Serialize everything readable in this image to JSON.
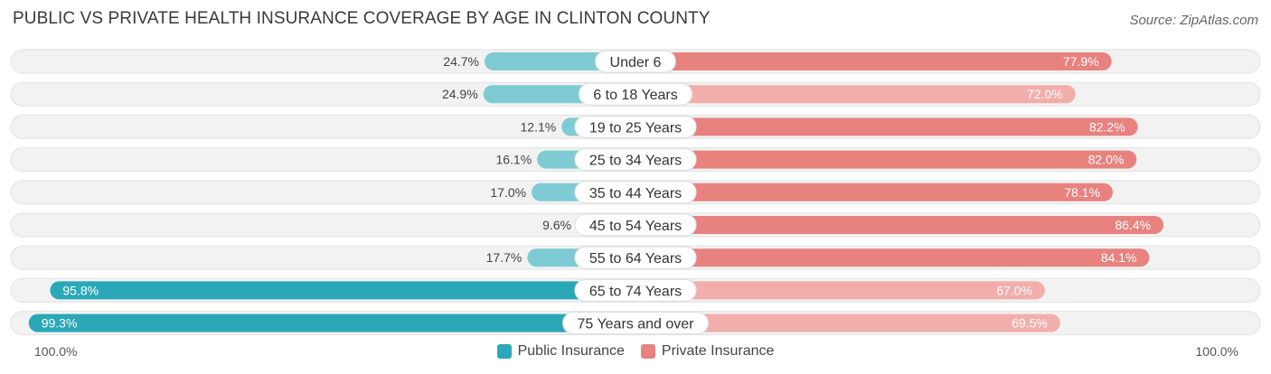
{
  "title": "PUBLIC VS PRIVATE HEALTH INSURANCE COVERAGE BY AGE IN CLINTON COUNTY",
  "source": "Source: ZipAtlas.com",
  "colors": {
    "public_dark": "#2aa8b8",
    "public_light": "#7ecbd3",
    "private_dark": "#e8827f",
    "private_light": "#f2aeab",
    "row_bg": "#f0f0f0"
  },
  "chart_data": {
    "type": "bar",
    "orientation": "horizontal-diverging",
    "title": "PUBLIC VS PRIVATE HEALTH INSURANCE COVERAGE BY AGE IN CLINTON COUNTY",
    "categories": [
      "Under 6",
      "6 to 18 Years",
      "19 to 25 Years",
      "25 to 34 Years",
      "35 to 44 Years",
      "45 to 54 Years",
      "55 to 64 Years",
      "65 to 74 Years",
      "75 Years and over"
    ],
    "series": [
      {
        "name": "Public Insurance",
        "values": [
          24.7,
          24.9,
          12.1,
          16.1,
          17.0,
          9.6,
          17.7,
          95.8,
          99.3
        ],
        "labels": [
          "24.7%",
          "24.9%",
          "12.1%",
          "16.1%",
          "17.0%",
          "9.6%",
          "17.7%",
          "95.8%",
          "99.3%"
        ]
      },
      {
        "name": "Private Insurance",
        "values": [
          77.9,
          72.0,
          82.2,
          82.0,
          78.1,
          86.4,
          84.1,
          67.0,
          69.5
        ],
        "labels": [
          "77.9%",
          "72.0%",
          "82.2%",
          "82.0%",
          "78.1%",
          "86.4%",
          "84.1%",
          "67.0%",
          "69.5%"
        ]
      }
    ],
    "xlim": [
      0,
      100
    ],
    "axis_left_label": "100.0%",
    "axis_right_label": "100.0%",
    "legend": [
      "Public Insurance",
      "Private Insurance"
    ],
    "legend_position": "bottom-center"
  }
}
